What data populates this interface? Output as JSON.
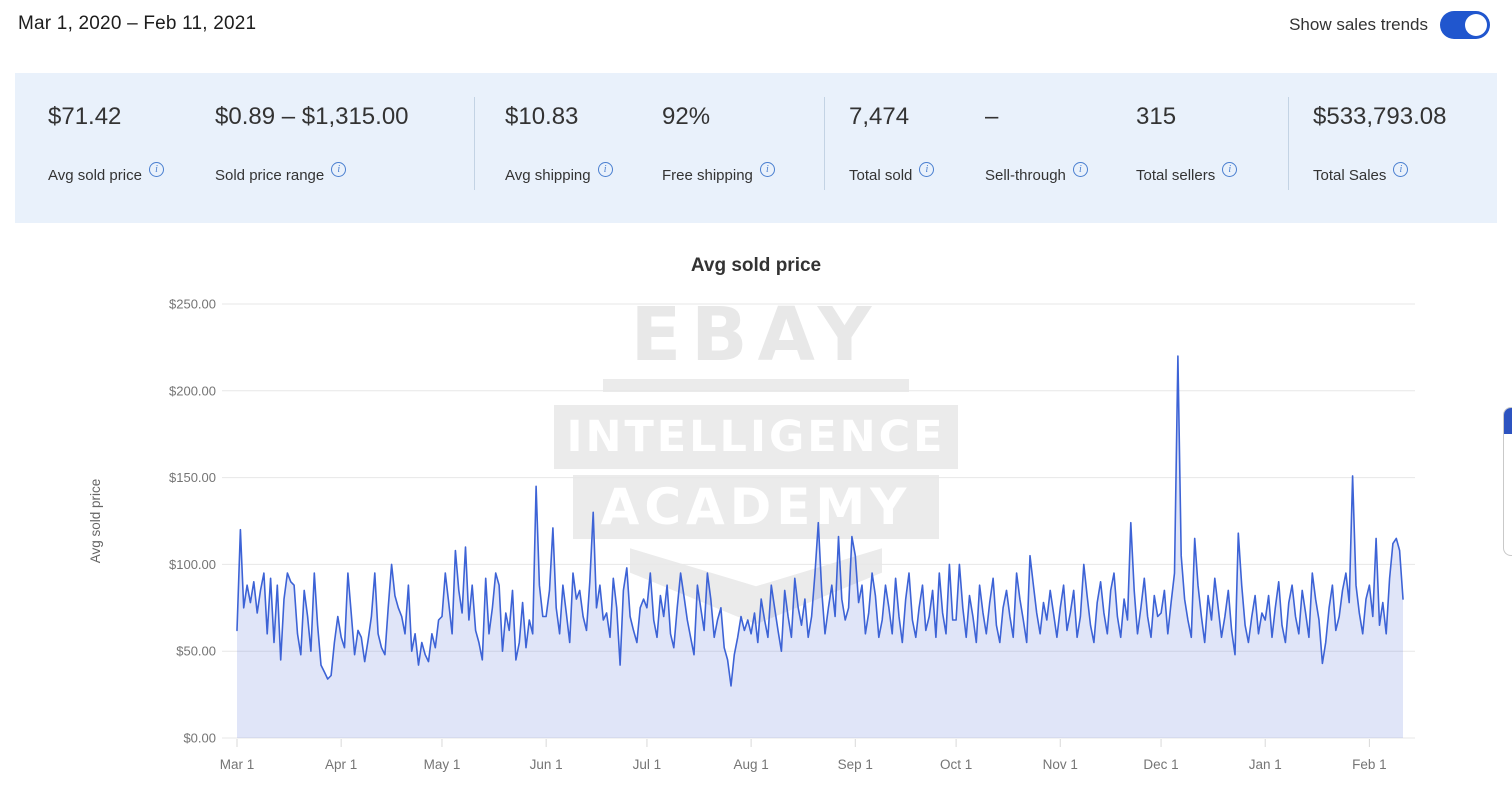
{
  "header": {
    "date_range": "Mar 1, 2020 – Feb 11, 2021",
    "toggle_label": "Show sales trends",
    "toggle_state": "on"
  },
  "icons": {
    "info": "i"
  },
  "colors": {
    "toggle_blue": "#2056ce",
    "stats_bar_bg": "#e9f1fb",
    "info_icon_blue": "#4a7fd0",
    "chart_line": "#3d63d6",
    "chart_fill": "rgba(84,113,216,0.18)"
  },
  "stats": {
    "items": [
      {
        "value": "$71.42",
        "label": "Avg sold price"
      },
      {
        "value": "$0.89 – $1,315.00",
        "label": "Sold price range"
      },
      {
        "value": "$10.83",
        "label": "Avg shipping"
      },
      {
        "value": "92%",
        "label": "Free shipping"
      },
      {
        "value": "7,474",
        "label": "Total sold"
      },
      {
        "value": "–",
        "label": "Sell-through"
      },
      {
        "value": "315",
        "label": "Total sellers"
      },
      {
        "value": "$533,793.08",
        "label": "Total Sales"
      }
    ]
  },
  "watermark": {
    "line1": "EBAY",
    "line2": "INTELLIGENCE",
    "line3": "ACADEMY"
  },
  "chart_data": {
    "type": "area",
    "title": "Avg sold price",
    "ylabel": "Avg sold price",
    "xlabel": "",
    "x_start": "2020-03-01",
    "x_end": "2021-02-11",
    "frequency": "daily",
    "ylim": [
      0,
      250
    ],
    "y_ticks": [
      "$0.00",
      "$50.00",
      "$100.00",
      "$150.00",
      "$200.00",
      "$250.00"
    ],
    "x_ticks": [
      "Mar 1",
      "Apr 1",
      "May 1",
      "Jun 1",
      "Jul 1",
      "Aug 1",
      "Sep 1",
      "Oct 1",
      "Nov 1",
      "Dec 1",
      "Jan 1",
      "Feb 1"
    ],
    "x_tick_day_offsets": [
      0,
      31,
      61,
      92,
      122,
      153,
      184,
      214,
      245,
      275,
      306,
      337
    ],
    "grid": true,
    "legend": false,
    "line_color": "#3d63d6",
    "fill_color": "rgba(84,113,216,0.18)",
    "values": [
      62,
      120,
      75,
      88,
      78,
      90,
      72,
      85,
      95,
      60,
      92,
      55,
      88,
      45,
      80,
      95,
      90,
      88,
      60,
      48,
      85,
      70,
      50,
      95,
      65,
      42,
      38,
      34,
      36,
      55,
      70,
      58,
      52,
      95,
      72,
      48,
      62,
      58,
      44,
      56,
      70,
      95,
      60,
      52,
      48,
      75,
      100,
      82,
      75,
      70,
      60,
      88,
      50,
      60,
      42,
      55,
      48,
      44,
      60,
      52,
      68,
      70,
      95,
      78,
      60,
      108,
      85,
      72,
      110,
      68,
      88,
      62,
      55,
      45,
      92,
      60,
      75,
      95,
      88,
      50,
      72,
      62,
      85,
      45,
      55,
      78,
      52,
      68,
      60,
      145,
      88,
      70,
      70,
      85,
      121,
      75,
      60,
      88,
      72,
      55,
      95,
      80,
      85,
      70,
      62,
      90,
      130,
      75,
      88,
      68,
      72,
      58,
      92,
      75,
      42,
      85,
      98,
      70,
      62,
      55,
      75,
      80,
      75,
      95,
      68,
      58,
      82,
      70,
      88,
      60,
      52,
      75,
      95,
      82,
      68,
      58,
      48,
      88,
      75,
      62,
      95,
      80,
      58,
      68,
      75,
      52,
      45,
      30,
      48,
      58,
      70,
      62,
      68,
      60,
      72,
      55,
      80,
      68,
      58,
      88,
      75,
      62,
      50,
      85,
      70,
      58,
      92,
      75,
      65,
      80,
      58,
      70,
      95,
      124,
      85,
      60,
      75,
      88,
      70,
      116,
      80,
      68,
      75,
      116,
      105,
      78,
      88,
      60,
      72,
      95,
      82,
      58,
      68,
      88,
      75,
      60,
      92,
      70,
      55,
      80,
      95,
      68,
      58,
      75,
      88,
      62,
      70,
      85,
      58,
      95,
      72,
      60,
      100,
      68,
      68,
      100,
      75,
      58,
      82,
      70,
      55,
      88,
      72,
      60,
      78,
      92,
      65,
      55,
      75,
      85,
      70,
      58,
      95,
      80,
      68,
      55,
      105,
      88,
      72,
      60,
      78,
      68,
      85,
      72,
      58,
      75,
      88,
      62,
      72,
      85,
      58,
      70,
      100,
      82,
      65,
      55,
      78,
      90,
      72,
      60,
      85,
      95,
      70,
      58,
      80,
      68,
      124,
      85,
      60,
      75,
      92,
      70,
      58,
      82,
      70,
      72,
      85,
      60,
      78,
      95,
      220,
      105,
      80,
      68,
      58,
      115,
      88,
      70,
      55,
      82,
      68,
      92,
      75,
      58,
      70,
      85,
      62,
      48,
      118,
      88,
      65,
      55,
      70,
      82,
      60,
      72,
      68,
      82,
      58,
      75,
      90,
      65,
      55,
      78,
      88,
      70,
      60,
      85,
      72,
      58,
      95,
      80,
      68,
      43,
      55,
      75,
      88,
      62,
      70,
      85,
      95,
      78,
      151,
      88,
      72,
      60,
      80,
      88,
      70,
      115,
      65,
      78,
      60,
      92,
      112,
      115,
      108,
      80
    ]
  }
}
